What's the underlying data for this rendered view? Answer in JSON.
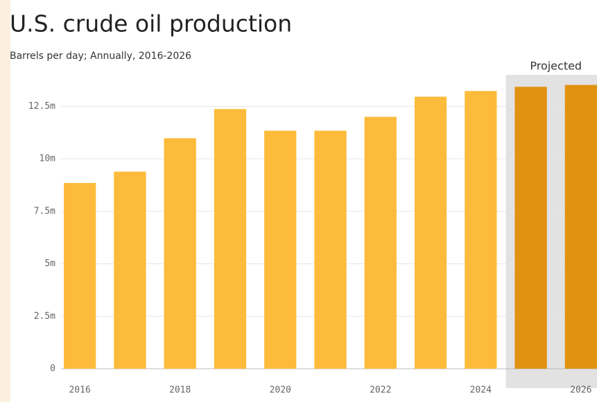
{
  "chart_data": {
    "type": "bar",
    "title": "U.S. crude oil production",
    "subtitle": "Barrels per day; Annually, 2016-2026",
    "x": [
      2016,
      2017,
      2018,
      2019,
      2020,
      2021,
      2022,
      2023,
      2024,
      2025,
      2026
    ],
    "values": [
      8850000,
      9390000,
      10980000,
      12370000,
      11340000,
      11340000,
      12000000,
      12960000,
      13230000,
      13430000,
      13520000
    ],
    "colors": [
      "#fdbb3b",
      "#fdbb3b",
      "#fdbb3b",
      "#fdbb3b",
      "#fdbb3b",
      "#fdbb3b",
      "#fdbb3b",
      "#fdbb3b",
      "#fdbb3b",
      "#e09210",
      "#e09210"
    ],
    "xlim": [
      2015.5,
      2026.5
    ],
    "xticks": [
      2016,
      2018,
      2020,
      2022,
      2024,
      2026
    ],
    "ylim": [
      0,
      14000000
    ],
    "yticks": [
      0,
      {
        "value": 2500000,
        "label": "2.5m"
      },
      {
        "value": 5000000,
        "label": "5m"
      },
      {
        "value": 7500000,
        "label": "7.5m"
      },
      {
        "value": 10000000,
        "label": "10m"
      },
      {
        "value": 12500000,
        "label": "12.5m"
      }
    ],
    "grid": true,
    "projected": {
      "label": "Projected",
      "from": 2025,
      "to": 2026
    }
  }
}
